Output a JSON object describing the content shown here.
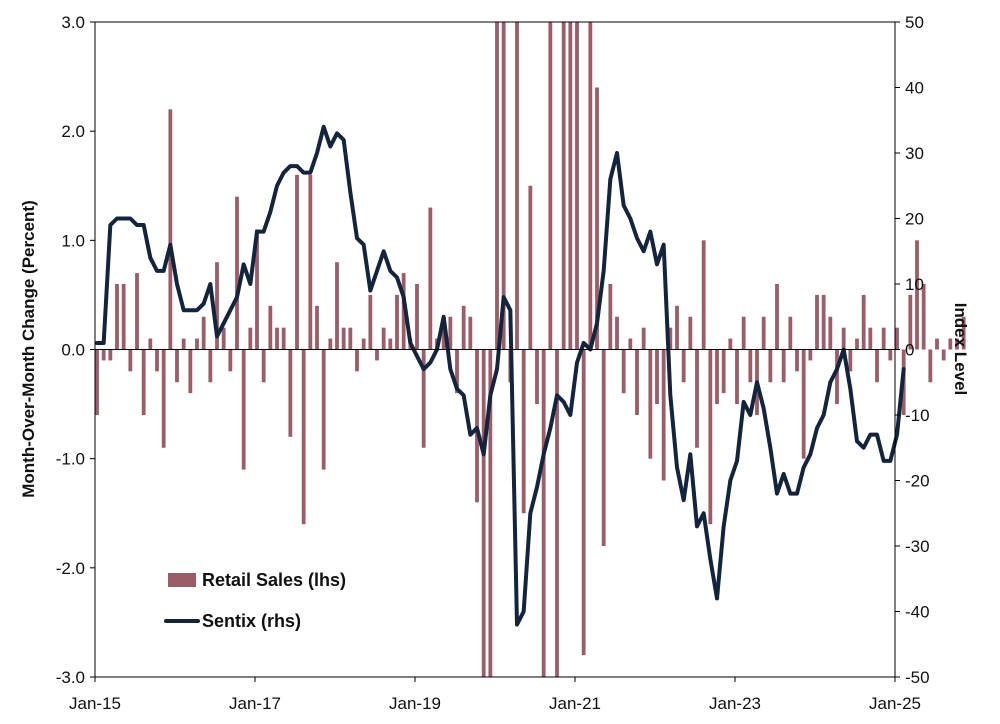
{
  "chart_data": {
    "type": "bar+line",
    "x_ticks": [
      "Jan-15",
      "Jan-17",
      "Jan-19",
      "Jan-21",
      "Jan-23",
      "Jan-25"
    ],
    "ylabel_left": "Month-Over-Month  Change (Percent)",
    "ylabel_right": "Index Level",
    "ylim_left": [
      -3,
      3
    ],
    "ylim_right": [
      -50,
      50
    ],
    "yticks_left": [
      "3.0",
      "2.0",
      "1.0",
      "0.0",
      "-1.0",
      "-2.0",
      "-3.0"
    ],
    "yticks_right": [
      "50",
      "40",
      "30",
      "20",
      "10",
      "0",
      "-10",
      "-20",
      "-30",
      "-40",
      "-50"
    ],
    "legend_position": "lower-left",
    "colors": {
      "retail": "#9b5d67",
      "sentix": "#13243d"
    },
    "series": [
      {
        "name": "Retail Sales (lhs)",
        "type": "bar",
        "axis": "left",
        "start": "2015-01",
        "values": [
          -0.6,
          -0.1,
          -0.1,
          0.6,
          0.6,
          -0.2,
          0.7,
          -0.6,
          0.1,
          -0.2,
          -0.9,
          2.2,
          -0.3,
          0.1,
          -0.4,
          0.1,
          0.3,
          -0.3,
          0.8,
          0.2,
          -0.2,
          1.4,
          -1.1,
          0.2,
          1.1,
          -0.3,
          0.4,
          0.2,
          0.2,
          -0.8,
          1.6,
          -1.6,
          1.6,
          0.4,
          -1.1,
          0.1,
          0.8,
          0.2,
          0.2,
          -0.2,
          0.1,
          0.5,
          -0.1,
          0.2,
          0.1,
          0.5,
          0.7,
          0.1,
          0.6,
          -0.9,
          1.3,
          0.1,
          0.2,
          0.3,
          -0.4,
          0.4,
          0.3,
          -1.4,
          -3.0,
          -3.0,
          3.0,
          3.0,
          -0.3,
          3.0,
          -1.5,
          1.5,
          -0.5,
          -3.0,
          3.0,
          -3.0,
          3.0,
          3.0,
          3.0,
          -2.8,
          3.0,
          2.4,
          -1.8,
          0.6,
          0.3,
          -0.4,
          0.1,
          -0.6,
          0.2,
          -1.0,
          -0.5,
          -1.2,
          0.2,
          0.4,
          -0.3,
          0.3,
          -0.9,
          1.0,
          -1.6,
          -0.5,
          -0.4,
          0.1,
          -0.5,
          0.3,
          -0.3,
          -0.6,
          0.3,
          -0.3,
          0.6,
          -0.3,
          0.3,
          -0.2,
          -1.0,
          -0.1,
          0.5,
          0.5,
          0.3,
          -0.5,
          0.2,
          -0.2,
          0.1,
          0.5,
          0.2,
          -0.3,
          0.2,
          -0.1,
          0.2,
          -0.6,
          0.5,
          1.0,
          0.6,
          -0.3,
          0.1,
          -0.1,
          0.1,
          0.1,
          0.3
        ]
      },
      {
        "name": "Sentix (rhs)",
        "type": "line",
        "axis": "right",
        "start": "2015-01",
        "values": [
          1,
          1,
          19,
          20,
          20,
          20,
          19,
          19,
          14,
          12,
          12,
          16,
          10,
          6,
          6,
          6,
          7,
          10,
          2,
          4,
          6,
          8,
          13,
          10,
          18,
          18,
          21,
          25,
          27,
          28,
          28,
          27,
          27,
          30,
          34,
          31,
          33,
          32,
          24,
          17,
          16,
          9,
          12,
          15,
          12,
          11,
          8,
          1,
          -1,
          -3,
          -2,
          0,
          5,
          -3,
          -6,
          -7,
          -13,
          -12,
          -16,
          -7,
          -3,
          8,
          6,
          -42,
          -40,
          -25,
          -21,
          -16,
          -12,
          -7,
          -8,
          -10,
          -2,
          1,
          0,
          4,
          12,
          26,
          30,
          22,
          20,
          17,
          15,
          18,
          13,
          16,
          -7,
          -18,
          -23,
          -16,
          -27,
          -25,
          -32,
          -38,
          -27,
          -20,
          -17,
          -8,
          -10,
          -5,
          -9,
          -15,
          -22,
          -19,
          -22,
          -22,
          -18,
          -16,
          -12,
          -10,
          -5,
          -3,
          0,
          -6,
          -14,
          -15,
          -13,
          -13,
          -17,
          -17,
          -13,
          -3
        ]
      }
    ]
  }
}
